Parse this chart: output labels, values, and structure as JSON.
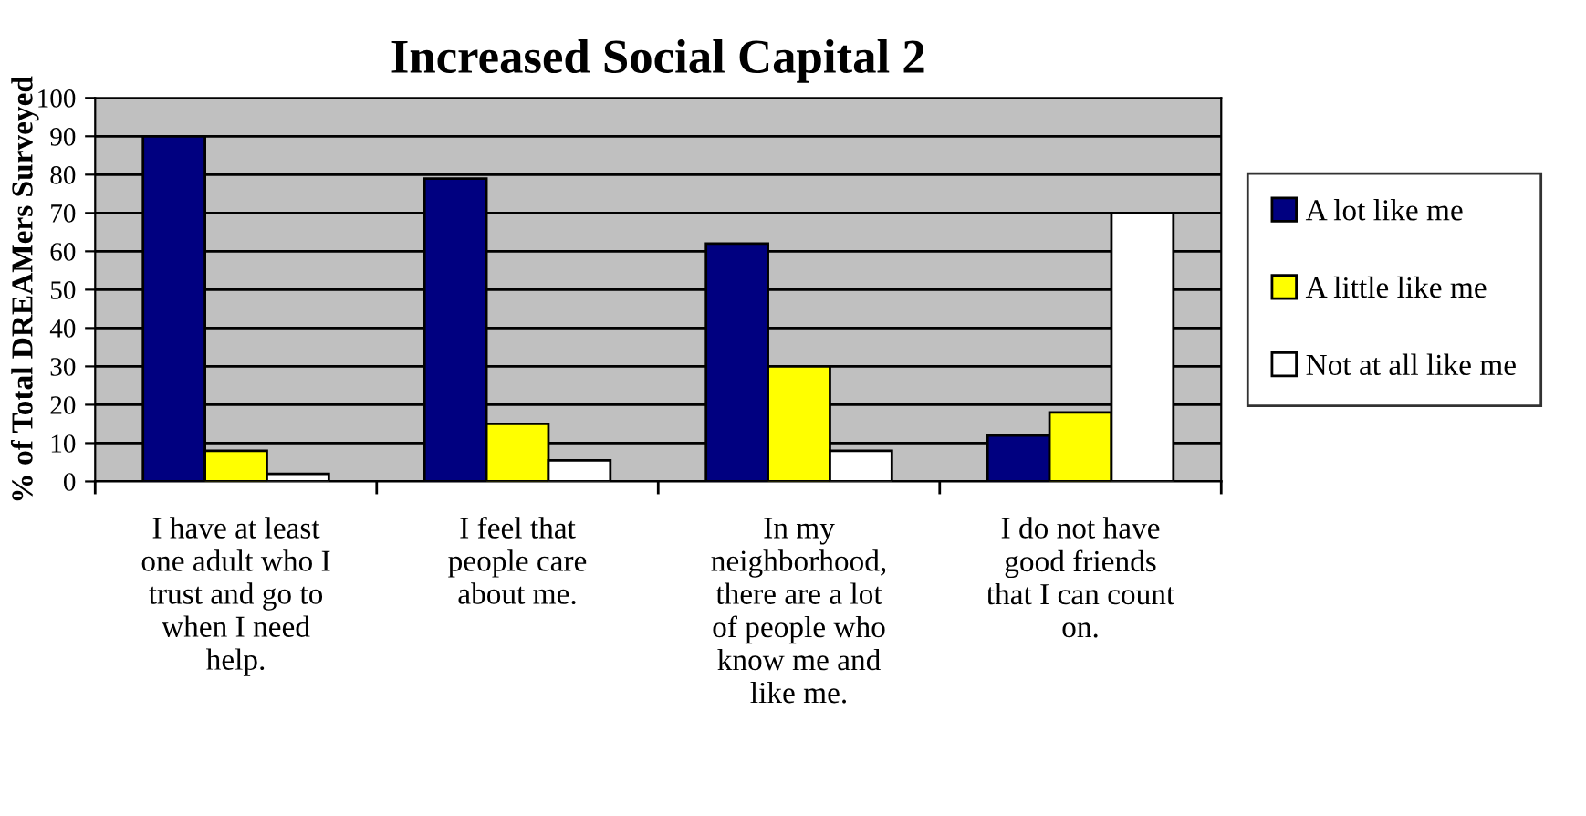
{
  "chart_data": {
    "type": "bar",
    "title": "Increased Social Capital 2",
    "ylabel": "% of Total DREAMers Surveyed",
    "categories": [
      "I have at least\none adult who I\ntrust and go to\nwhen I need\nhelp.",
      "I feel that\npeople care\nabout me.",
      "In my\nneighborhood,\nthere are a lot\nof people who\nknow me and\nlike me.",
      "I do not have\ngood friends\nthat I can count\non."
    ],
    "series": [
      {
        "name": "A lot like me",
        "color": "#000080",
        "values": [
          90,
          79,
          62,
          12
        ]
      },
      {
        "name": "A little like me",
        "color": "#ffff00",
        "values": [
          8,
          15,
          30,
          18
        ]
      },
      {
        "name": "Not at all like me",
        "color": "#ffffff",
        "values": [
          2,
          5.5,
          8,
          70
        ]
      }
    ],
    "ylim": [
      0,
      100
    ],
    "yticks": [
      0,
      10,
      20,
      30,
      40,
      50,
      60,
      70,
      80,
      90,
      100
    ],
    "grid": "y",
    "legend": "right"
  }
}
